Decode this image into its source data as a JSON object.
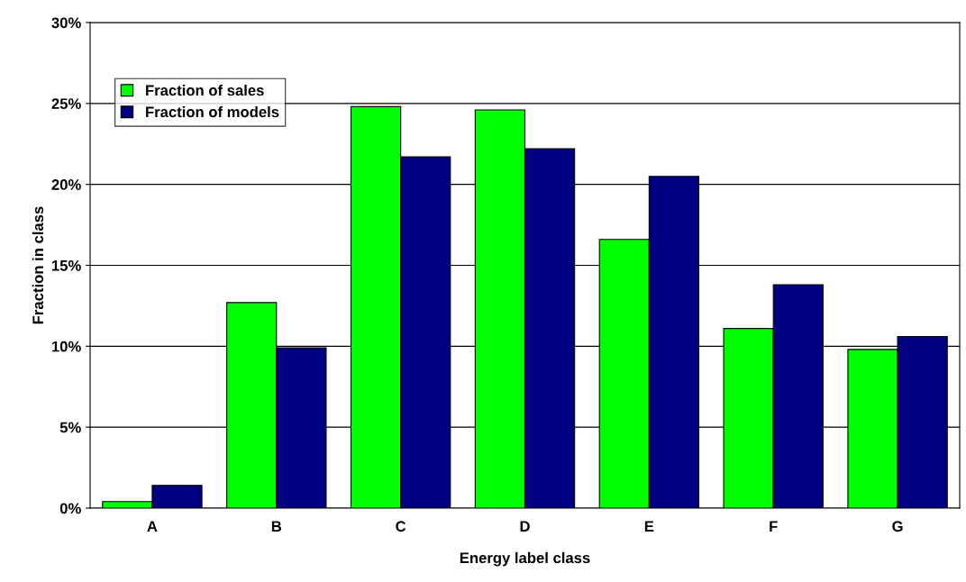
{
  "chart_data": {
    "type": "bar",
    "xlabel": "Energy label class",
    "ylabel": "Fraction in class",
    "categories": [
      "A",
      "B",
      "C",
      "D",
      "E",
      "F",
      "G"
    ],
    "series": [
      {
        "name": "Fraction of sales",
        "color": "#00ff00",
        "values": [
          0.4,
          12.7,
          24.8,
          24.6,
          16.6,
          11.1,
          9.8
        ]
      },
      {
        "name": "Fraction of models",
        "color": "#000080",
        "values": [
          1.4,
          9.9,
          21.7,
          22.2,
          20.5,
          13.8,
          10.6
        ]
      }
    ],
    "ylim": [
      0,
      30
    ],
    "yticks": [
      {
        "value": 0,
        "label": "0%"
      },
      {
        "value": 5,
        "label": "5%"
      },
      {
        "value": 10,
        "label": "10%"
      },
      {
        "value": 15,
        "label": "15%"
      },
      {
        "value": 20,
        "label": "20%"
      },
      {
        "value": 25,
        "label": "25%"
      },
      {
        "value": 30,
        "label": "30%"
      }
    ],
    "grid": "y",
    "legend": "top left"
  }
}
